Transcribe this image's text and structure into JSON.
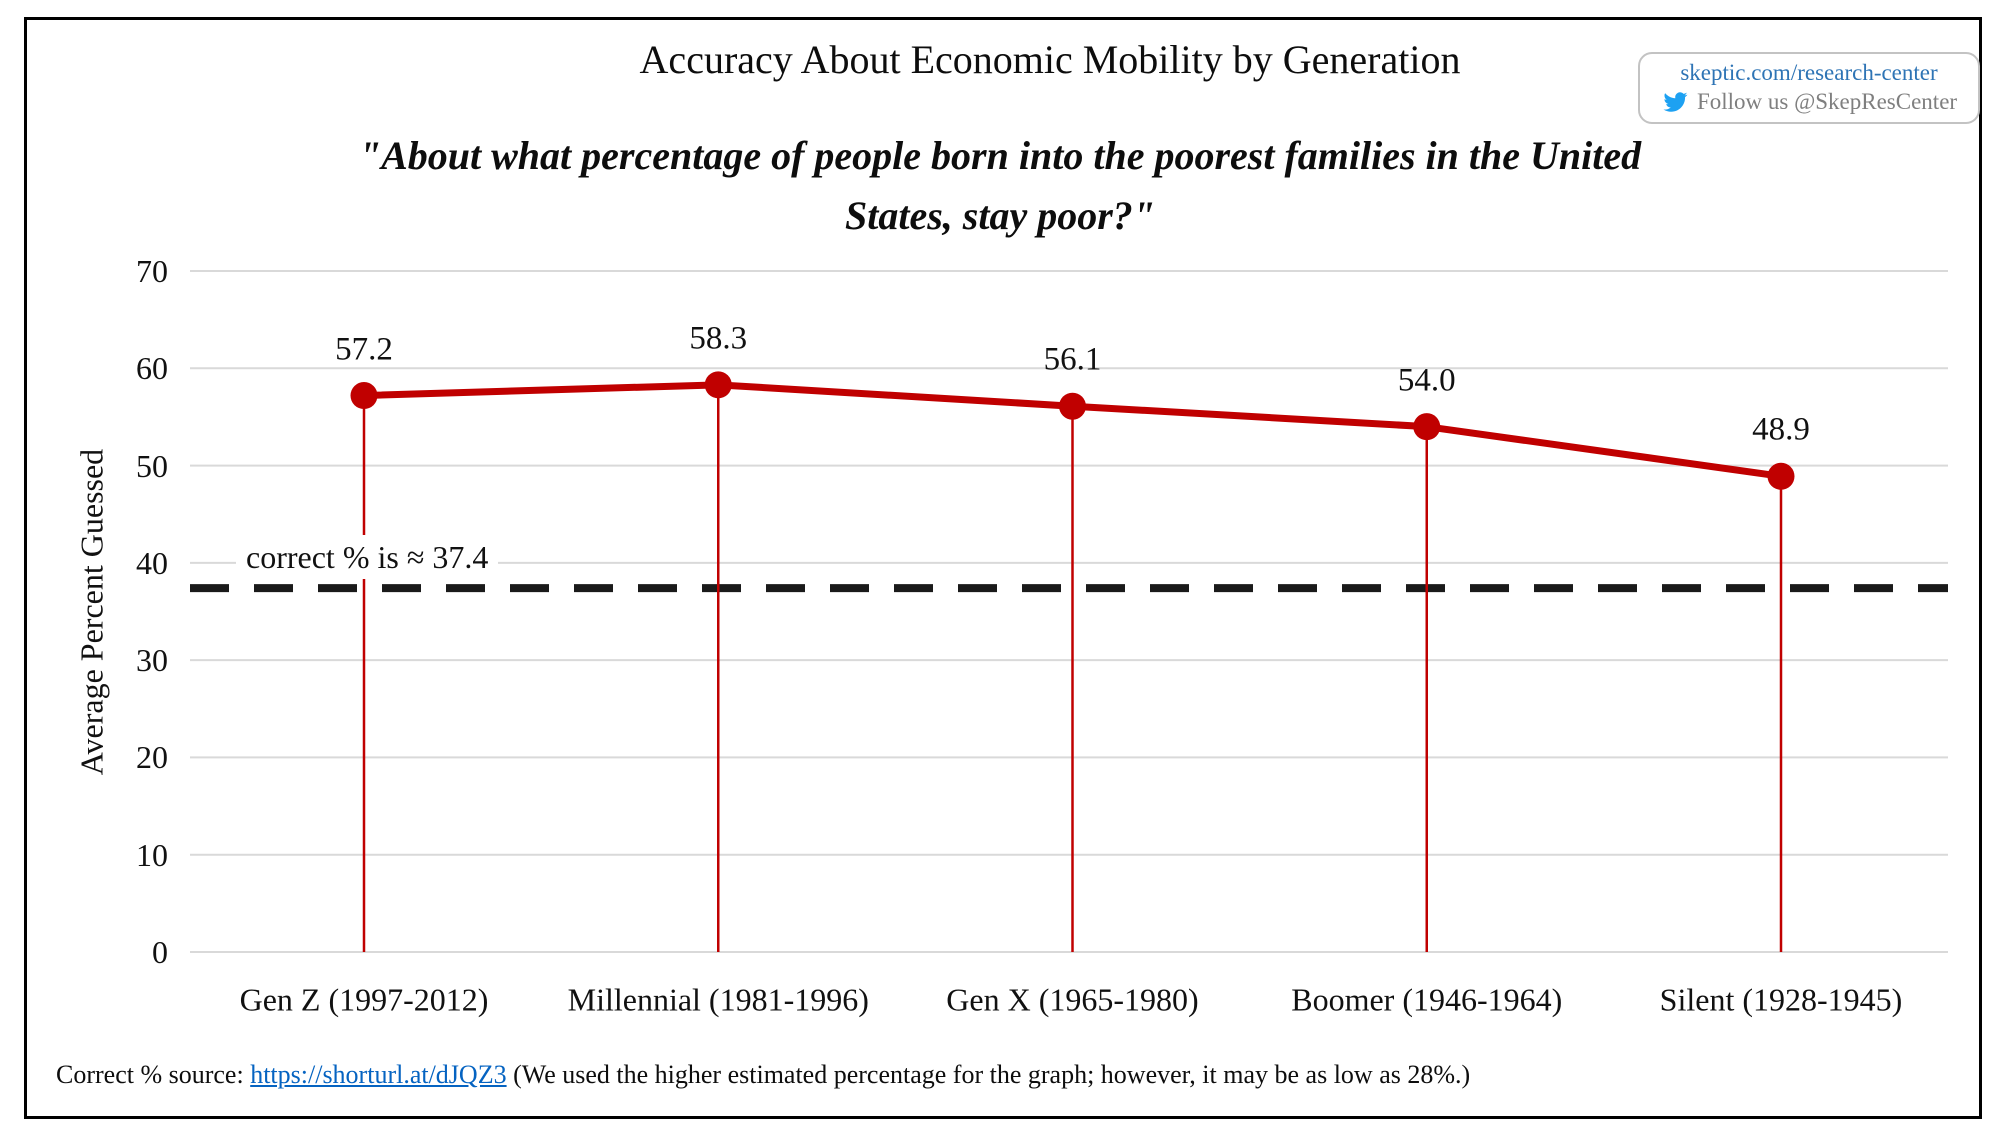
{
  "header": {
    "title": "Accuracy About Economic Mobility by Generation",
    "badge": {
      "line1": "skeptic.com/research-center",
      "line2": "Follow us @SkepResCenter",
      "icon": "twitter-bird-icon",
      "line1_color": "#2e74b5",
      "line2_color": "#7f7f7f",
      "icon_color": "#1da1f2"
    }
  },
  "chart_data": {
    "type": "line",
    "title": "Accuracy About Economic Mobility by Generation",
    "subtitle": "\"About what percentage of people born into the poorest families in the United States, stay poor?\"",
    "subtitle_lines": [
      "\"About what percentage of people born into the poorest families in the United",
      "States, stay poor?\""
    ],
    "ylabel": "Average Percent Guessed",
    "xlabel": "",
    "categories": [
      "Gen Z (1997-2012)",
      "Millennial (1981-1996)",
      "Gen X (1965-1980)",
      "Boomer (1946-1964)",
      "Silent (1928-1945)"
    ],
    "values": [
      57.2,
      58.3,
      56.1,
      54.0,
      48.9
    ],
    "value_labels": [
      "57.2",
      "58.3",
      "56.1",
      "54.0",
      "48.9"
    ],
    "ylim": [
      0,
      70
    ],
    "yticks": [
      0,
      10,
      20,
      30,
      40,
      50,
      60,
      70
    ],
    "grid": true,
    "legend": "none",
    "reference_line": {
      "value": 37.4,
      "label": "correct % is ≈ 37.4",
      "style": "dashed",
      "color": "#1a1a1a"
    },
    "series_color": "#c00000",
    "gridline_color": "#d9d9d9"
  },
  "footer": {
    "prefix": "Correct % source: ",
    "link": "https://shorturl.at/dJQZ3",
    "suffix": " (We used the higher estimated percentage for the graph; however, it may be as low as 28%.)",
    "link_color": "#0563c1"
  }
}
